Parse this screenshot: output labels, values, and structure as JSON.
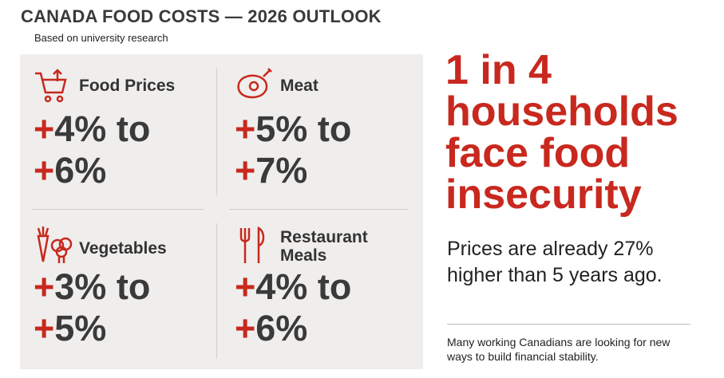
{
  "header": {
    "title": "CANADA FOOD COSTS — 2026 OUTLOOK",
    "subtitle": "Based on university research"
  },
  "cards": [
    {
      "label": "Food Prices",
      "low": "+4%",
      "word": "to",
      "high": "+6%"
    },
    {
      "label": "Meat",
      "low": "+5%",
      "word": "to",
      "high": "+7%"
    },
    {
      "label": "Vegetables",
      "low": "+3%",
      "word": "to",
      "high": "+5%"
    },
    {
      "label": "Restaurant Meals",
      "low": "+4%",
      "word": "to",
      "high": "+6%"
    }
  ],
  "highlight": {
    "headline": "1 in 4 households face food insecurity",
    "body": "Prices are already 27% higher than 5 years ago.",
    "note": "Many working Canadians are looking for new ways to build financial stability."
  }
}
